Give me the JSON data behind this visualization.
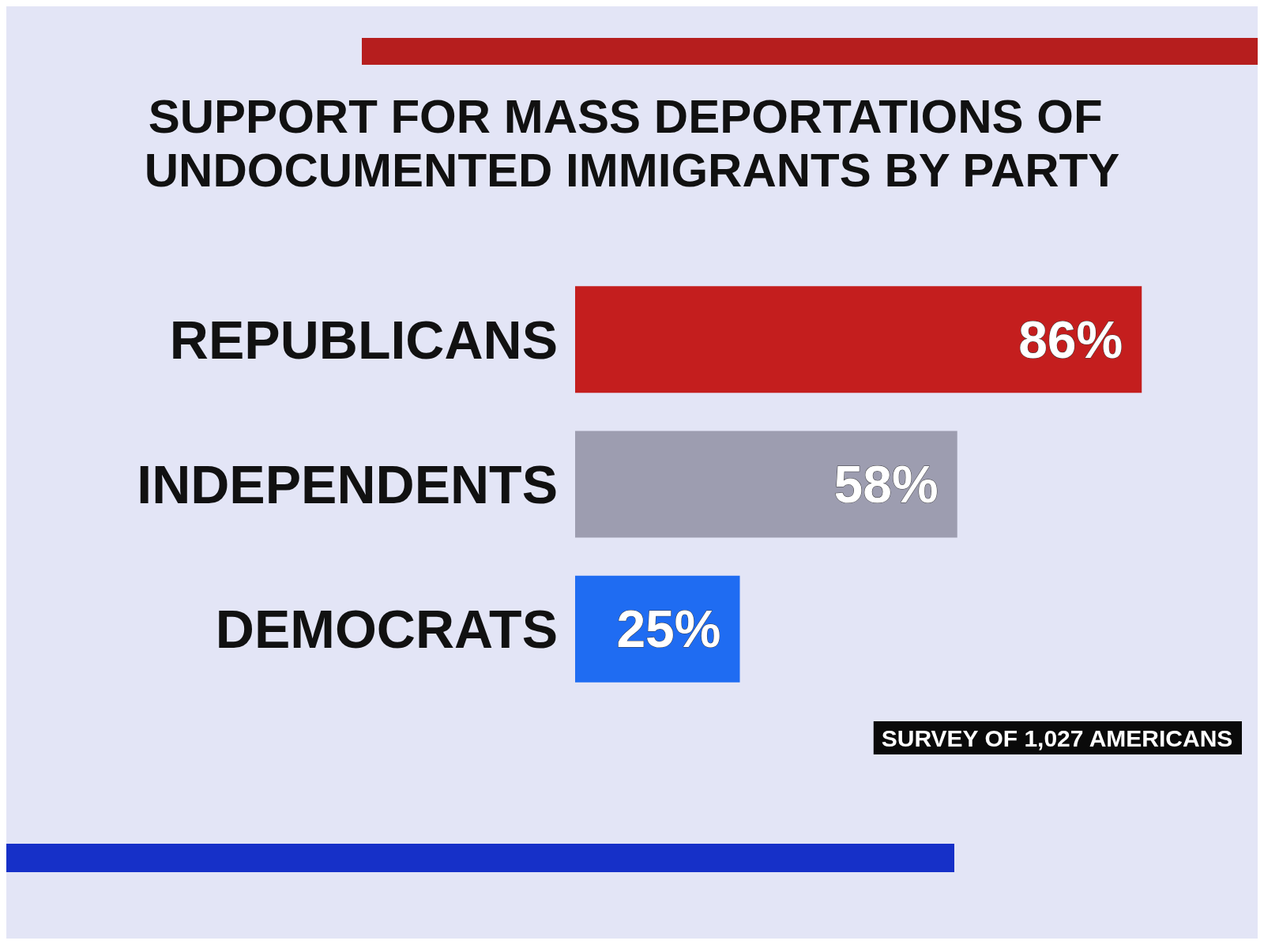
{
  "chart_data": {
    "type": "bar",
    "orientation": "horizontal",
    "title": "SUPPORT FOR MASS DEPORTATIONS OF UNDOCUMENTED IMMIGRANTS BY PARTY",
    "categories": [
      "REPUBLICANS",
      "INDEPENDENTS",
      "DEMOCRATS"
    ],
    "values": [
      86,
      58,
      25
    ],
    "colors": [
      "#c41e1e",
      "#9d9db0",
      "#1f6cf2"
    ],
    "value_labels": [
      "86%",
      "58%",
      "25%"
    ],
    "annotations": [
      "SURVEY OF 1,027 AMERICANS"
    ]
  }
}
